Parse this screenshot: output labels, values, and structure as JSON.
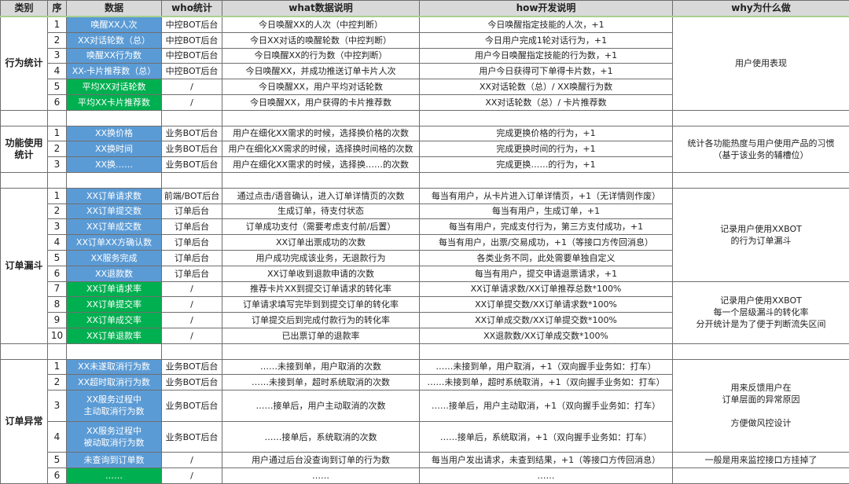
{
  "headers": [
    "类别",
    "序",
    "数据",
    "who统计",
    "what数据说明",
    "how开发说明",
    "why为什么做"
  ],
  "colors": {
    "blue": "#5b9bd5",
    "green": "#00b050",
    "header_bg": "#d9d9d9"
  },
  "sections": [
    {
      "category": "行为统计",
      "rows": [
        {
          "seq": "1",
          "metric": "唤醒XX人次",
          "color": "blue",
          "who": "中控BOT后台",
          "what": "今日唤醒XX的人次（中控判断）",
          "how": "今日唤醒指定技能的人次，+1"
        },
        {
          "seq": "2",
          "metric": "XX对话轮数（总）",
          "color": "blue",
          "who": "中控BOT后台",
          "what": "今日XX对话的唤醒轮数（中控判断）",
          "how": "今日用户完成1轮对话行为，+1"
        },
        {
          "seq": "3",
          "metric": "唤醒XX行为数",
          "color": "blue",
          "who": "中控BOT后台",
          "what": "今日唤醒XX的行为数（中控判断）",
          "how": "用户今日唤醒指定技能的行为数，+1"
        },
        {
          "seq": "4",
          "metric": "XX-卡片推荐数（总）",
          "color": "blue",
          "who": "中控BOT后台",
          "what": "今日唤醒XX，并成功推送订单卡片人次",
          "how": "用户今日获得可下单得卡片数，+1"
        },
        {
          "seq": "5",
          "metric": "平均XX对话轮数",
          "color": "green",
          "who": "/",
          "what": "今日唤醒XX，用户平均对话轮数",
          "how": "XX对话轮数（总）/ XX唤醒行为数"
        },
        {
          "seq": "6",
          "metric": "平均XX卡片推荐数",
          "color": "green",
          "who": "/",
          "what": "今日唤醒XX，用户获得的卡片推荐数",
          "how": "XX对话轮数（总）/ 卡片推荐数"
        }
      ],
      "why": [
        {
          "text": "用户使用表现",
          "span": 6
        }
      ]
    },
    {
      "category": "功能使用\n统计",
      "rows": [
        {
          "seq": "1",
          "metric": "XX换价格",
          "color": "blue",
          "who": "业务BOT后台",
          "what": "用户在细化XX需求的时候，选择换价格的次数",
          "how": "完成更换价格的行为，+1"
        },
        {
          "seq": "2",
          "metric": "XX换时间",
          "color": "blue",
          "who": "业务BOT后台",
          "what": "用户在细化XX需求的时候，选择换时间格的次数",
          "how": "完成更换时间的行为，+1"
        },
        {
          "seq": "3",
          "metric": "XX换……",
          "color": "blue",
          "who": "业务BOT后台",
          "what": "用户在细化XX需求的时候，选择换……的次数",
          "how": "完成更换……的行为，+1"
        }
      ],
      "why": [
        {
          "text": "统计各功能热度与用户使用产品的习惯\n（基于该业务的辅槽位）",
          "span": 3
        }
      ]
    },
    {
      "category": "订单漏斗",
      "rows": [
        {
          "seq": "1",
          "metric": "XX订单请求数",
          "color": "blue",
          "who": "前端/BOT后台",
          "what": "通过点击/语音确认，进入订单详情页的次数",
          "how": "每当有用户，从卡片进入订单详情页，+1（无详情则作废）"
        },
        {
          "seq": "2",
          "metric": "XX订单提交数",
          "color": "blue",
          "who": "订单后台",
          "what": "生成订单，待支付状态",
          "how": "每当有用户，生成订单，+1"
        },
        {
          "seq": "3",
          "metric": "XX订单成交数",
          "color": "blue",
          "who": "订单后台",
          "what": "订单成功支付（需要考虑支付前/后置）",
          "how": "每当有用户，完成支付行为，第三方支付成功，+1"
        },
        {
          "seq": "4",
          "metric": "XX订单XX方确认数",
          "color": "blue",
          "who": "订单后台",
          "what": "XX订单出票成功的次数",
          "how": "每当有用户，出票/交易成功，+1（等接口方传回消息）"
        },
        {
          "seq": "5",
          "metric": "XX服务完成",
          "color": "blue",
          "who": "订单后台",
          "what": "用户成功完成该业务，无退款行为",
          "how": "各类业务不同，此处需要单独自定义"
        },
        {
          "seq": "6",
          "metric": "XX退款数",
          "color": "blue",
          "who": "订单后台",
          "what": "XX订单收到退款申请的次数",
          "how": "每当有用户，提交申请退票请求，+1"
        },
        {
          "seq": "7",
          "metric": "XX订单请求率",
          "color": "green",
          "who": "/",
          "what": "推荐卡片XX到提交订单请求的转化率",
          "how": "XX订单请求数/XX订单推荐总数*100%"
        },
        {
          "seq": "8",
          "metric": "XX订单提交率",
          "color": "green",
          "who": "/",
          "what": "订单请求填写完毕到到提交订单的转化率",
          "how": "XX订单提交数/XX订单请求数*100%"
        },
        {
          "seq": "9",
          "metric": "XX订单成交率",
          "color": "green",
          "who": "/",
          "what": "订单提交后到完成付款行为的转化率",
          "how": "XX订单成交数/XX订单提交数*100%"
        },
        {
          "seq": "10",
          "metric": "XX订单退款率",
          "color": "green",
          "who": "/",
          "what": "已出票订单的退款率",
          "how": "XX退款数/XX订单成交数*100%"
        }
      ],
      "why": [
        {
          "text": "记录用户使用XXBOT\n的行为订单漏斗",
          "span": 6
        },
        {
          "text": "记录用户使用XXBOT\n每一个层级漏斗的转化率\n分开统计是为了便于判断流失区间",
          "span": 4
        }
      ]
    },
    {
      "category": "订单异常",
      "rows": [
        {
          "seq": "1",
          "metric": "XX未遂取消行为数",
          "color": "blue",
          "who": "业务BOT后台",
          "what": "……未接到单，用户取消的次数",
          "how": "……未接到单，用户取消，+1（双向握手业务如：打车）"
        },
        {
          "seq": "2",
          "metric": "XX超时取消行为数",
          "color": "blue",
          "who": "业务BOT后台",
          "what": "……未接到单，超时系统取消的次数",
          "how": "……未接到单，超时系统取消，+1（双向握手业务如：打车）"
        },
        {
          "seq": "3",
          "metric": "XX服务过程中\n主动取消行为数",
          "color": "blue",
          "who": "业务BOT后台",
          "what": "……接单后，用户主动取消的次数",
          "how": "……接单后，用户主动取消，+1（双向握手业务如：打车）",
          "double": true
        },
        {
          "seq": "4",
          "metric": "XX服务过程中\n被动取消行为数",
          "color": "blue",
          "who": "业务BOT后台",
          "what": "……接单后，系统取消的次数",
          "how": "……接单后，系统取消，+1（双向握手业务如：打车）",
          "double": true
        },
        {
          "seq": "5",
          "metric": "未查询到订单数",
          "color": "blue",
          "who": "/",
          "what": "用户通过后台没查询到订单的行为数",
          "how": "每当用户发出请求，未查到结果，+1（等接口方传回消息）"
        },
        {
          "seq": "6",
          "metric": "……",
          "color": "green",
          "who": "/",
          "what": "……",
          "how": "……"
        }
      ],
      "why": [
        {
          "text": "用来反馈用户在\n订单层面的异常原因\n\n方便做风控设计",
          "span": 4
        },
        {
          "text": "一般是用来监控接口方挂掉了",
          "span": 1
        },
        {
          "text": "",
          "span": 1
        }
      ]
    }
  ]
}
